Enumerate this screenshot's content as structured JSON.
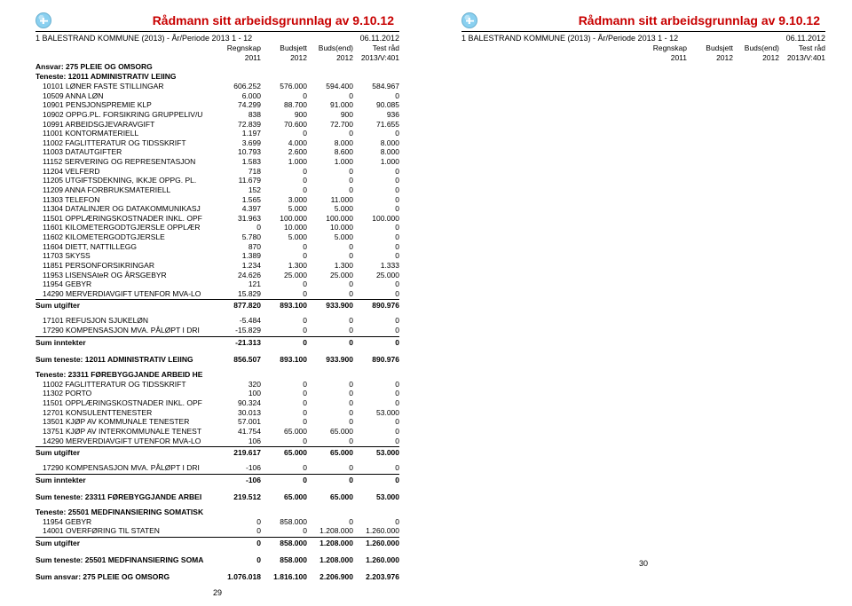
{
  "title": "Rådmann sitt arbeidsgrunnlag av 9.10.12",
  "entity_line": "1 BALESTRAND KOMMUNE (2013) - År/Periode 2013 1 - 12",
  "date": "06.11.2012",
  "col_labels_top": [
    "Regnskap",
    "Budsjett",
    "Buds(end)",
    "Test råd"
  ],
  "col_labels_bot": [
    "2011",
    "2012",
    "2012",
    "2013/V:401"
  ],
  "ansvar": "Ansvar: 275 PLEIE OG OMSORG",
  "teneste_12011": "Teneste: 12011 ADMINISTRATIV LEIING",
  "rows_12011": [
    {
      "l": "10101 LØNER FASTE STILLINGAR",
      "v": [
        "606.252",
        "576.000",
        "594.400",
        "584.967"
      ]
    },
    {
      "l": "10509 ANNA LØN",
      "v": [
        "6.000",
        "0",
        "0",
        "0"
      ]
    },
    {
      "l": "10901 PENSJONSPREMIE KLP",
      "v": [
        "74.299",
        "88.700",
        "91.000",
        "90.085"
      ]
    },
    {
      "l": "10902 OPPG.PL. FORSIKRING GRUPPELIV/U",
      "v": [
        "838",
        "900",
        "900",
        "936"
      ]
    },
    {
      "l": "10991 ARBEIDSGJEVARAVGIFT",
      "v": [
        "72.839",
        "70.600",
        "72.700",
        "71.655"
      ]
    },
    {
      "l": "11001 KONTORMATERIELL",
      "v": [
        "1.197",
        "0",
        "0",
        "0"
      ]
    },
    {
      "l": "11002 FAGLITTERATUR OG TIDSSKRIFT",
      "v": [
        "3.699",
        "4.000",
        "8.000",
        "8.000"
      ]
    },
    {
      "l": "11003 DATAUTGIFTER",
      "v": [
        "10.793",
        "2.600",
        "8.600",
        "8.000"
      ]
    },
    {
      "l": "11152 SERVERING OG REPRESENTASJON",
      "v": [
        "1.583",
        "1.000",
        "1.000",
        "1.000"
      ]
    },
    {
      "l": "11204 VELFERD",
      "v": [
        "718",
        "0",
        "0",
        "0"
      ]
    },
    {
      "l": "11205 UTGIFTSDEKNING, IKKJE OPPG. PL.",
      "v": [
        "11.679",
        "0",
        "0",
        "0"
      ]
    },
    {
      "l": "11209 ANNA FORBRUKSMATERIELL",
      "v": [
        "152",
        "0",
        "0",
        "0"
      ]
    },
    {
      "l": "11303 TELEFON",
      "v": [
        "1.565",
        "3.000",
        "11.000",
        "0"
      ]
    },
    {
      "l": "11304 DATALINJER OG DATAKOMMUNIKASJ",
      "v": [
        "4.397",
        "5.000",
        "5.000",
        "0"
      ]
    },
    {
      "l": "11501 OPPLÆRINGSKOSTNADER INKL. OPF",
      "v": [
        "31.963",
        "100.000",
        "100.000",
        "100.000"
      ]
    },
    {
      "l": "11601 KILOMETERGODTGJERSLE OPPLÆR",
      "v": [
        "0",
        "10.000",
        "10.000",
        "0"
      ]
    },
    {
      "l": "11602 KILOMETERGODTGJERSLE",
      "v": [
        "5.780",
        "5.000",
        "5.000",
        "0"
      ]
    },
    {
      "l": "11604 DIETT, NATTILLEGG",
      "v": [
        "870",
        "0",
        "0",
        "0"
      ]
    },
    {
      "l": "11703 SKYSS",
      "v": [
        "1.389",
        "0",
        "0",
        "0"
      ]
    },
    {
      "l": "11851 PERSONFORSIKRINGAR",
      "v": [
        "1.234",
        "1.300",
        "1.300",
        "1.333"
      ]
    },
    {
      "l": "11953 LISENSAteR OG ÅRSGEBYR",
      "v": [
        "24.626",
        "25.000",
        "25.000",
        "25.000"
      ]
    },
    {
      "l": "11954 GEBYR",
      "v": [
        "121",
        "0",
        "0",
        "0"
      ]
    },
    {
      "l": "14290 MERVERDIAVGIFT UTENFOR MVA-LO",
      "v": [
        "15.829",
        "0",
        "0",
        "0"
      ]
    }
  ],
  "sum_utgifter_12011": {
    "l": "Sum utgifter",
    "v": [
      "877.820",
      "893.100",
      "933.900",
      "890.976"
    ]
  },
  "rows_12011_inn": [
    {
      "l": "17101 REFUSJON SJUKELØN",
      "v": [
        "-5.484",
        "0",
        "0",
        "0"
      ]
    },
    {
      "l": "17290 KOMPENSASJON MVA. PÅLØPT I DRI",
      "v": [
        "-15.829",
        "0",
        "0",
        "0"
      ]
    }
  ],
  "sum_inntekter_12011": {
    "l": "Sum inntekter",
    "v": [
      "-21.313",
      "0",
      "0",
      "0"
    ]
  },
  "sum_teneste_12011": {
    "l": "Sum teneste: 12011 ADMINISTRATIV LEIING",
    "v": [
      "856.507",
      "893.100",
      "933.900",
      "890.976"
    ]
  },
  "teneste_23311": "Teneste: 23311 FØREBYGGJANDE ARBEID HE",
  "rows_23311": [
    {
      "l": "11002 FAGLITTERATUR OG TIDSSKRIFT",
      "v": [
        "320",
        "0",
        "0",
        "0"
      ]
    },
    {
      "l": "11302 PORTO",
      "v": [
        "100",
        "0",
        "0",
        "0"
      ]
    },
    {
      "l": "11501 OPPLÆRINGSKOSTNADER INKL. OPF",
      "v": [
        "90.324",
        "0",
        "0",
        "0"
      ]
    },
    {
      "l": "12701 KONSULENTTENESTER",
      "v": [
        "30.013",
        "0",
        "0",
        "53.000"
      ]
    },
    {
      "l": "13501 KJØP AV KOMMUNALE TENESTER",
      "v": [
        "57.001",
        "0",
        "0",
        "0"
      ]
    },
    {
      "l": "13751 KJØP AV INTERKOMMUNALE TENEST",
      "v": [
        "41.754",
        "65.000",
        "65.000",
        "0"
      ]
    },
    {
      "l": "14290 MERVERDIAVGIFT UTENFOR MVA-LO",
      "v": [
        "106",
        "0",
        "0",
        "0"
      ]
    }
  ],
  "sum_utgifter_23311": {
    "l": "Sum utgifter",
    "v": [
      "219.617",
      "65.000",
      "65.000",
      "53.000"
    ]
  },
  "rows_23311_inn": [
    {
      "l": "17290 KOMPENSASJON MVA. PÅLØPT I DRI",
      "v": [
        "-106",
        "0",
        "0",
        "0"
      ]
    }
  ],
  "sum_inntekter_23311": {
    "l": "Sum inntekter",
    "v": [
      "-106",
      "0",
      "0",
      "0"
    ]
  },
  "sum_teneste_23311": {
    "l": "Sum teneste: 23311 FØREBYGGJANDE ARBEI",
    "v": [
      "219.512",
      "65.000",
      "65.000",
      "53.000"
    ]
  },
  "teneste_25501": "Teneste: 25501 MEDFINANSIERING SOMATISK",
  "rows_25501": [
    {
      "l": "11954 GEBYR",
      "v": [
        "0",
        "858.000",
        "0",
        "0"
      ]
    },
    {
      "l": "14001 OVERFØRING TIL STATEN",
      "v": [
        "0",
        "0",
        "1.208.000",
        "1.260.000"
      ]
    }
  ],
  "sum_utgifter_25501": {
    "l": "Sum utgifter",
    "v": [
      "0",
      "858.000",
      "1.208.000",
      "1.260.000"
    ]
  },
  "sum_teneste_25501": {
    "l": "Sum teneste: 25501 MEDFINANSIERING SOMA",
    "v": [
      "0",
      "858.000",
      "1.208.000",
      "1.260.000"
    ]
  },
  "sum_ansvar": {
    "l": "Sum ansvar: 275 PLEIE OG OMSORG",
    "v": [
      "1.076.018",
      "1.816.100",
      "2.206.900",
      "2.203.976"
    ]
  },
  "page_left": "29",
  "page_right": "30"
}
